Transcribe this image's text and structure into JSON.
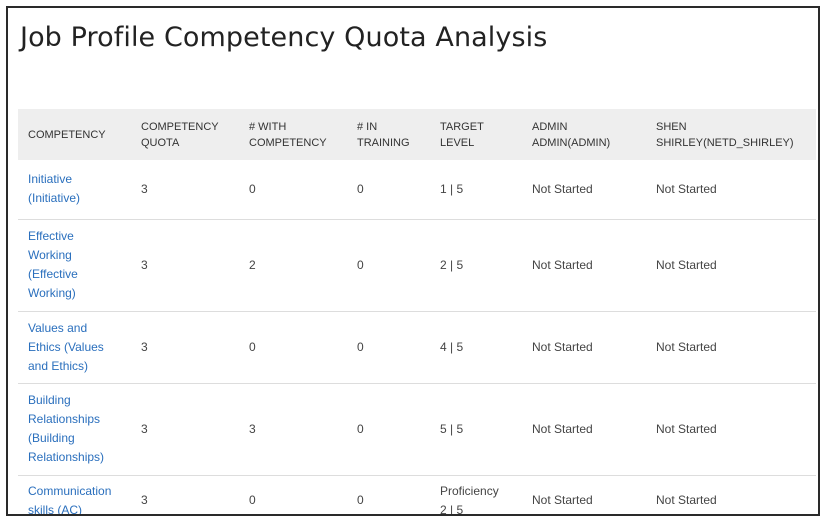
{
  "page": {
    "title": "Job Profile Competency Quota Analysis"
  },
  "table": {
    "headers": {
      "competency": "COMPETENCY",
      "competency_quota": [
        "COMPETENCY",
        "QUOTA"
      ],
      "with_competency": [
        "# WITH",
        "COMPETENCY"
      ],
      "in_training": [
        "# IN",
        "TRAINING"
      ],
      "target_level": [
        "TARGET",
        "LEVEL"
      ],
      "admin": [
        "ADMIN",
        "ADMIN(ADMIN)"
      ],
      "shen": [
        "SHEN",
        "SHIRLEY(NETD_SHIRLEY)"
      ]
    },
    "rows": [
      {
        "competency": [
          "Initiative",
          "(Initiative)"
        ],
        "quota": "3",
        "with_competency": "0",
        "in_training": "0",
        "target_level": [
          "1 | 5"
        ],
        "admin_status": "Not Started",
        "shen_status": "Not Started"
      },
      {
        "competency": [
          "Effective",
          "Working",
          "(Effective",
          "Working)"
        ],
        "quota": "3",
        "with_competency": "2",
        "in_training": "0",
        "target_level": [
          "2 | 5"
        ],
        "admin_status": "Not Started",
        "shen_status": "Not Started"
      },
      {
        "competency": [
          "Values and",
          "Ethics (Values",
          "and Ethics)"
        ],
        "quota": "3",
        "with_competency": "0",
        "in_training": "0",
        "target_level": [
          "4 | 5"
        ],
        "admin_status": "Not Started",
        "shen_status": "Not Started"
      },
      {
        "competency": [
          "Building",
          "Relationships",
          "(Building",
          "Relationships)"
        ],
        "quota": "3",
        "with_competency": "3",
        "in_training": "0",
        "target_level": [
          "5 | 5"
        ],
        "admin_status": "Not Started",
        "shen_status": "Not Started"
      },
      {
        "competency": [
          "Communication",
          "skills (AC)"
        ],
        "quota": "3",
        "with_competency": "0",
        "in_training": "0",
        "target_level": [
          "Proficiency",
          "2 | 5"
        ],
        "admin_status": "Not Started",
        "shen_status": "Not Started"
      }
    ]
  },
  "colors": {
    "link": "#2a6fbd",
    "header_bg": "#eeeeee",
    "text": "#444444",
    "border": "#2a2a2a"
  }
}
